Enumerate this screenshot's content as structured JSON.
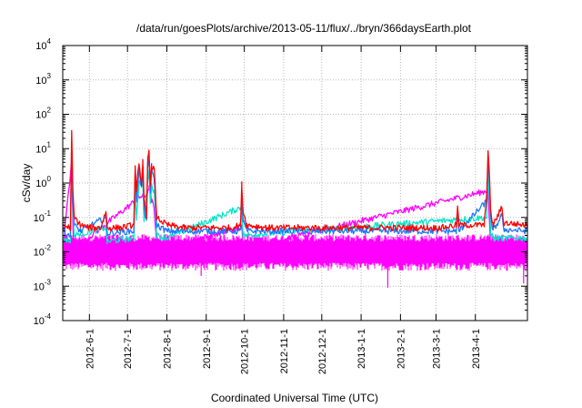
{
  "chart_data": {
    "type": "line",
    "title": "/data/run/goesPlots/archive/2013-05-11/flux/../bryn/366daysEarth.plot",
    "xlabel": "Coordinated Universal Time (UTC)",
    "ylabel": "cSv/day",
    "y_scale": "log",
    "ylim": [
      0.0001,
      10000
    ],
    "y_ticks": [
      {
        "value": 0.0001,
        "base": "10",
        "exp": "-4"
      },
      {
        "value": 0.001,
        "base": "10",
        "exp": "-3"
      },
      {
        "value": 0.01,
        "base": "10",
        "exp": "-2"
      },
      {
        "value": 0.1,
        "base": "10",
        "exp": "-1"
      },
      {
        "value": 1,
        "base": "10",
        "exp": "0"
      },
      {
        "value": 10,
        "base": "10",
        "exp": "1"
      },
      {
        "value": 100,
        "base": "10",
        "exp": "2"
      },
      {
        "value": 1000,
        "base": "10",
        "exp": "3"
      },
      {
        "value": 10000,
        "base": "10",
        "exp": "4"
      }
    ],
    "x_type": "date",
    "xlim": [
      "2012-05-11",
      "2013-05-12"
    ],
    "x_ticks": [
      "2012-6-1",
      "2012-7-1",
      "2012-8-1",
      "2012-9-1",
      "2012-10-1",
      "2012-11-1",
      "2012-12-1",
      "2013-1-1",
      "2013-2-1",
      "2013-3-1",
      "2013-4-1"
    ],
    "x_tick_dates": [
      "2012-06-01",
      "2012-07-01",
      "2012-08-01",
      "2012-09-01",
      "2012-10-01",
      "2012-11-01",
      "2012-12-01",
      "2013-01-01",
      "2013-02-01",
      "2013-03-01",
      "2013-04-01"
    ],
    "grid": true,
    "legend": false,
    "series": [
      {
        "color": "#ff0000",
        "points": [
          {
            "x": "2012-05-11",
            "y": 0.06
          },
          {
            "x": "2012-05-17",
            "y": 0.05
          },
          {
            "x": "2012-05-18",
            "y": 28
          },
          {
            "x": "2012-05-19",
            "y": 0.5
          },
          {
            "x": "2012-05-20",
            "y": 0.1
          },
          {
            "x": "2012-05-25",
            "y": 0.06
          },
          {
            "x": "2012-06-01",
            "y": 0.05
          },
          {
            "x": "2012-06-10",
            "y": 0.05
          },
          {
            "x": "2012-06-14",
            "y": 0.15
          },
          {
            "x": "2012-06-15",
            "y": 0.05
          },
          {
            "x": "2012-06-25",
            "y": 0.05
          },
          {
            "x": "2012-07-06",
            "y": 0.06
          },
          {
            "x": "2012-07-07",
            "y": 3
          },
          {
            "x": "2012-07-08",
            "y": 0.5
          },
          {
            "x": "2012-07-10",
            "y": 4
          },
          {
            "x": "2012-07-12",
            "y": 1
          },
          {
            "x": "2012-07-13",
            "y": 4
          },
          {
            "x": "2012-07-14",
            "y": 0.3
          },
          {
            "x": "2012-07-16",
            "y": 0.1
          },
          {
            "x": "2012-07-17",
            "y": 5
          },
          {
            "x": "2012-07-18",
            "y": 9
          },
          {
            "x": "2012-07-19",
            "y": 1
          },
          {
            "x": "2012-07-20",
            "y": 3
          },
          {
            "x": "2012-07-22",
            "y": 2.5
          },
          {
            "x": "2012-07-24",
            "y": 0.1
          },
          {
            "x": "2012-08-01",
            "y": 0.06
          },
          {
            "x": "2012-08-15",
            "y": 0.05
          },
          {
            "x": "2012-09-01",
            "y": 0.05
          },
          {
            "x": "2012-09-20",
            "y": 0.05
          },
          {
            "x": "2012-09-28",
            "y": 0.06
          },
          {
            "x": "2012-09-29",
            "y": 0.9
          },
          {
            "x": "2012-09-30",
            "y": 0.15
          },
          {
            "x": "2012-10-03",
            "y": 0.06
          },
          {
            "x": "2012-10-20",
            "y": 0.05
          },
          {
            "x": "2012-11-01",
            "y": 0.05
          },
          {
            "x": "2012-11-25",
            "y": 0.05
          },
          {
            "x": "2012-12-10",
            "y": 0.05
          },
          {
            "x": "2013-01-01",
            "y": 0.05
          },
          {
            "x": "2013-01-20",
            "y": 0.05
          },
          {
            "x": "2013-02-10",
            "y": 0.05
          },
          {
            "x": "2013-03-05",
            "y": 0.05
          },
          {
            "x": "2013-03-17",
            "y": 0.06
          },
          {
            "x": "2013-03-18",
            "y": 0.2
          },
          {
            "x": "2013-03-19",
            "y": 0.06
          },
          {
            "x": "2013-04-08",
            "y": 0.06
          },
          {
            "x": "2013-04-10",
            "y": 0.5
          },
          {
            "x": "2013-04-11",
            "y": 10
          },
          {
            "x": "2013-04-12",
            "y": 2
          },
          {
            "x": "2013-04-13",
            "y": 0.15
          },
          {
            "x": "2013-04-15",
            "y": 0.06
          },
          {
            "x": "2013-04-22",
            "y": 0.2
          },
          {
            "x": "2013-04-23",
            "y": 0.07
          },
          {
            "x": "2013-05-12",
            "y": 0.06
          }
        ]
      },
      {
        "color": "#1e78ff",
        "points": [
          {
            "x": "2012-05-11",
            "y": 0.04
          },
          {
            "x": "2012-05-17",
            "y": 0.03
          },
          {
            "x": "2012-05-18",
            "y": 12
          },
          {
            "x": "2012-05-19",
            "y": 0.3
          },
          {
            "x": "2012-05-20",
            "y": 0.06
          },
          {
            "x": "2012-05-25",
            "y": 0.04
          },
          {
            "x": "2012-06-14",
            "y": 0.1
          },
          {
            "x": "2012-06-15",
            "y": 0.035
          },
          {
            "x": "2012-07-06",
            "y": 0.04
          },
          {
            "x": "2012-07-07",
            "y": 2
          },
          {
            "x": "2012-07-08",
            "y": 0.3
          },
          {
            "x": "2012-07-10",
            "y": 2.5
          },
          {
            "x": "2012-07-12",
            "y": 0.7
          },
          {
            "x": "2012-07-13",
            "y": 2.5
          },
          {
            "x": "2012-07-14",
            "y": 0.2
          },
          {
            "x": "2012-07-16",
            "y": 0.07
          },
          {
            "x": "2012-07-17",
            "y": 3
          },
          {
            "x": "2012-07-18",
            "y": 5
          },
          {
            "x": "2012-07-19",
            "y": 0.6
          },
          {
            "x": "2012-07-20",
            "y": 2
          },
          {
            "x": "2012-07-22",
            "y": 1.5
          },
          {
            "x": "2012-07-24",
            "y": 0.06
          },
          {
            "x": "2012-08-01",
            "y": 0.04
          },
          {
            "x": "2012-09-28",
            "y": 0.04
          },
          {
            "x": "2012-09-29",
            "y": 0.5
          },
          {
            "x": "2012-09-30",
            "y": 0.08
          },
          {
            "x": "2012-10-03",
            "y": 0.04
          },
          {
            "x": "2013-03-17",
            "y": 0.04
          },
          {
            "x": "2013-03-18",
            "y": 0.12
          },
          {
            "x": "2013-03-19",
            "y": 0.04
          },
          {
            "x": "2013-04-10",
            "y": 0.3
          },
          {
            "x": "2013-04-11",
            "y": 6
          },
          {
            "x": "2013-04-12",
            "y": 1.2
          },
          {
            "x": "2013-04-13",
            "y": 0.1
          },
          {
            "x": "2013-04-15",
            "y": 0.04
          },
          {
            "x": "2013-04-22",
            "y": 0.12
          },
          {
            "x": "2013-04-23",
            "y": 0.045
          },
          {
            "x": "2013-05-12",
            "y": 0.04
          }
        ]
      },
      {
        "color": "#00e6c8",
        "points": [
          {
            "x": "2012-05-11",
            "y": 0.025
          },
          {
            "x": "2012-05-17",
            "y": 0.02
          },
          {
            "x": "2012-05-18",
            "y": 5
          },
          {
            "x": "2012-05-19",
            "y": 0.15
          },
          {
            "x": "2012-05-20",
            "y": 0.03
          },
          {
            "x": "2012-06-14",
            "y": 0.05
          },
          {
            "x": "2012-06-15",
            "y": 0.02
          },
          {
            "x": "2012-07-06",
            "y": 0.025
          },
          {
            "x": "2012-07-07",
            "y": 0.8
          },
          {
            "x": "2012-07-08",
            "y": 0.1
          },
          {
            "x": "2012-07-10",
            "y": 1
          },
          {
            "x": "2012-07-13",
            "y": 1
          },
          {
            "x": "2012-07-14",
            "y": 0.08
          },
          {
            "x": "2012-07-17",
            "y": 1.2
          },
          {
            "x": "2012-07-18",
            "y": 2
          },
          {
            "x": "2012-07-19",
            "y": 0.3
          },
          {
            "x": "2012-07-20",
            "y": 0.8
          },
          {
            "x": "2012-07-22",
            "y": 0.6
          },
          {
            "x": "2012-07-24",
            "y": 0.03
          },
          {
            "x": "2012-08-01",
            "y": 0.025
          },
          {
            "x": "2012-09-29",
            "y": 0.2
          },
          {
            "x": "2012-09-30",
            "y": 0.03
          },
          {
            "x": "2013-04-10",
            "y": 0.1
          },
          {
            "x": "2013-04-11",
            "y": 2
          },
          {
            "x": "2013-04-12",
            "y": 0.4
          },
          {
            "x": "2013-04-13",
            "y": 0.04
          },
          {
            "x": "2013-04-15",
            "y": 0.025
          },
          {
            "x": "2013-05-12",
            "y": 0.025
          }
        ]
      },
      {
        "color": "#ff00ff",
        "points": [
          {
            "x": "2012-05-11",
            "y": 0.012
          },
          {
            "x": "2012-05-18",
            "y": 4
          },
          {
            "x": "2012-05-19",
            "y": 0.05
          },
          {
            "x": "2012-05-20",
            "y": 0.012
          },
          {
            "x": "2012-07-07",
            "y": 0.3
          },
          {
            "x": "2012-07-10",
            "y": 0.4
          },
          {
            "x": "2012-07-13",
            "y": 0.4
          },
          {
            "x": "2012-07-17",
            "y": 0.5
          },
          {
            "x": "2012-07-18",
            "y": 0.8
          },
          {
            "x": "2012-07-20",
            "y": 0.3
          },
          {
            "x": "2012-07-22",
            "y": 0.2
          },
          {
            "x": "2012-07-24",
            "y": 0.012
          },
          {
            "x": "2012-09-29",
            "y": 0.05
          },
          {
            "x": "2012-09-30",
            "y": 0.012
          },
          {
            "x": "2013-04-11",
            "y": 0.6
          },
          {
            "x": "2013-04-12",
            "y": 0.1
          },
          {
            "x": "2013-04-13",
            "y": 0.012
          },
          {
            "x": "2013-05-12",
            "y": 0.012
          }
        ]
      }
    ],
    "baseline_band": {
      "color": "#ff00ff",
      "typical_min": 0.004,
      "typical_max": 0.025
    },
    "dips": [
      {
        "x": "2012-08-28",
        "y": 0.002
      },
      {
        "x": "2013-01-22",
        "y": 0.0009
      },
      {
        "x": "2013-05-09",
        "y": 0.0012
      }
    ]
  }
}
